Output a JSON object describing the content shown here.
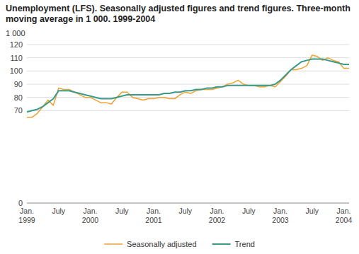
{
  "chart_data": {
    "type": "line",
    "title": "Unemployment (LFS). Seasonally adjusted figures and trend figures. Three-month moving average in 1 000. 1999-2004",
    "y_label": "1 000",
    "categories": [
      "Jan.\n1999",
      null,
      null,
      null,
      null,
      null,
      "July",
      null,
      null,
      null,
      null,
      null,
      "Jan.\n2000",
      null,
      null,
      null,
      null,
      null,
      "July",
      null,
      null,
      null,
      null,
      null,
      "Jan.\n2001",
      null,
      null,
      null,
      null,
      null,
      "July",
      null,
      null,
      null,
      null,
      null,
      "Jan.\n2002",
      null,
      null,
      null,
      null,
      null,
      "July",
      null,
      null,
      null,
      null,
      null,
      "Jan.\n2003",
      null,
      null,
      null,
      null,
      null,
      "July",
      null,
      null,
      null,
      null,
      null,
      "Jan.\n2004",
      null
    ],
    "series": [
      {
        "name": "Seasonally adjusted",
        "color": "#f0a030",
        "values": [
          65,
          65,
          68,
          73,
          78,
          74,
          87,
          86,
          86,
          84,
          82,
          80,
          80,
          78,
          76,
          76,
          75,
          80,
          84,
          84,
          80,
          79,
          78,
          79,
          79,
          80,
          80,
          79,
          79,
          82,
          84,
          83,
          85,
          86,
          86,
          86,
          87,
          88,
          90,
          91,
          93,
          90,
          89,
          89,
          88,
          88,
          89,
          88,
          92,
          96,
          101,
          101,
          102,
          104,
          112,
          111,
          108,
          110,
          108,
          107,
          102,
          102
        ]
      },
      {
        "name": "Trend",
        "color": "#3a9a8a",
        "values": [
          69,
          70,
          71,
          73,
          76,
          79,
          85,
          85,
          85,
          84,
          83,
          82,
          81,
          80,
          79,
          79,
          79,
          80,
          81,
          82,
          82,
          82,
          82,
          82,
          82,
          82,
          83,
          83,
          84,
          84,
          85,
          85,
          86,
          86,
          87,
          87,
          88,
          88,
          89,
          89,
          89,
          89,
          89,
          89,
          89,
          89,
          89,
          90,
          93,
          97,
          101,
          104,
          107,
          108,
          109,
          109,
          109,
          108,
          107,
          106,
          105,
          105
        ]
      }
    ],
    "ylim": [
      0,
      120
    ],
    "yticks": [
      0,
      70,
      80,
      90,
      100,
      110,
      120
    ],
    "grid": true,
    "legend": "bottom"
  }
}
